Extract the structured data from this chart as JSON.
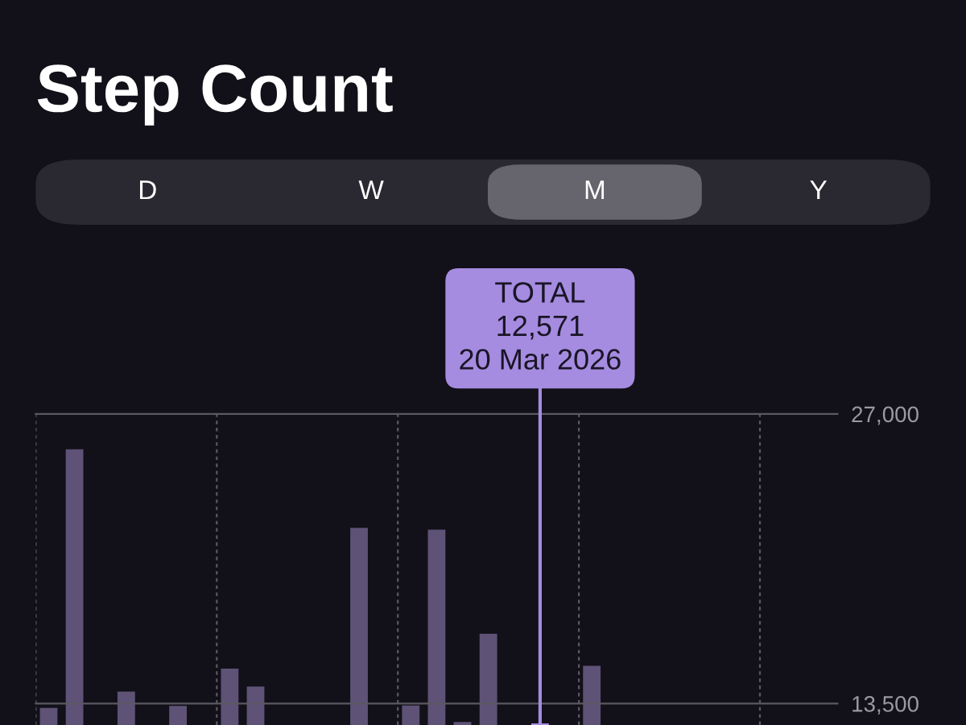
{
  "chart_data": {
    "type": "bar",
    "title": "Step Count",
    "categories": [
      null,
      null,
      null,
      null,
      null,
      null,
      null,
      null,
      null,
      null,
      null,
      null,
      null,
      null,
      null,
      null,
      null,
      null,
      null,
      null,
      null,
      null,
      null,
      null,
      null,
      null,
      null,
      null,
      null,
      null,
      null
    ],
    "values": [
      13300,
      25350,
      null,
      14060,
      null,
      13390,
      null,
      15130,
      14290,
      null,
      null,
      null,
      21690,
      null,
      13410,
      21610,
      12640,
      16750,
      null,
      12571,
      null,
      15260,
      null,
      null,
      null,
      null,
      null,
      null,
      null,
      null,
      null
    ],
    "colors": [
      "#5e5276",
      "#5e5276",
      "#5e5276",
      "#5e5276",
      "#5e5276",
      "#5e5276",
      "#5e5276",
      "#5e5276",
      "#5e5276",
      "#5e5276",
      "#5e5276",
      "#5e5276",
      "#5e5276",
      "#5e5276",
      "#5e5276",
      "#5e5276",
      "#5e5276",
      "#5e5276",
      "#5e5276",
      "#a58ce0",
      "#5e5276",
      "#5e5276",
      "#5e5276",
      "#5e5276",
      "#5e5276",
      "#5e5276",
      "#5e5276",
      "#5e5276",
      "#5e5276",
      "#5e5276",
      "#5e5276"
    ],
    "ylim": [
      12500,
      27000
    ],
    "yticks": [
      {
        "value": 13500,
        "label": "13,500"
      },
      {
        "value": 27000,
        "label": "27,000"
      }
    ],
    "grid": "x",
    "tick_labels": "y",
    "ref_lines": [
      {
        "axis": "y",
        "value": 13500,
        "color": "#5a5862"
      },
      {
        "axis": "y",
        "value": 27000,
        "color": "#5a5862"
      }
    ],
    "annotations": [
      "D",
      "W",
      "M",
      "Y",
      {
        "text": "TOTAL\n12,571\n20 Mar 2026",
        "y": 12571
      }
    ]
  }
}
